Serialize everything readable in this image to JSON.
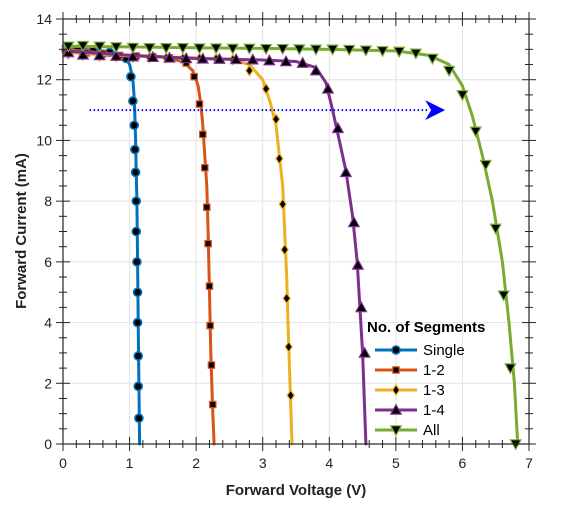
{
  "chart_data": {
    "type": "line",
    "title": "",
    "xlabel": "Forward Voltage (V)",
    "ylabel": "Forward Current (mA)",
    "xlim": [
      0,
      7
    ],
    "ylim": [
      0,
      14
    ],
    "x_ticks": [
      "0",
      "1",
      "2",
      "3",
      "4",
      "5",
      "6",
      "7"
    ],
    "y_ticks": [
      "0",
      "2",
      "4",
      "6",
      "8",
      "10",
      "12",
      "14"
    ],
    "grid": true,
    "legend": {
      "title": "No. of Segments",
      "placement": "bottom-right"
    },
    "annotations": [
      {
        "type": "arrow",
        "style": "dotted",
        "color": "#0000ff",
        "from": [
          0.4,
          11.0
        ],
        "to": [
          5.5,
          11.0
        ]
      }
    ],
    "series": [
      {
        "name": "Single",
        "color": "#0072bd",
        "marker": "circle",
        "points": [
          [
            0.0,
            13.1
          ],
          [
            0.3,
            13.0
          ],
          [
            0.6,
            12.95
          ],
          [
            0.85,
            12.85
          ],
          [
            0.95,
            12.7
          ],
          [
            1.0,
            12.5
          ],
          [
            1.03,
            12.2
          ],
          [
            1.05,
            12.0
          ],
          [
            1.07,
            11.4
          ],
          [
            1.08,
            10.8
          ],
          [
            1.09,
            10.0
          ],
          [
            1.1,
            9.0
          ],
          [
            1.11,
            8.0
          ],
          [
            1.12,
            6.0
          ],
          [
            1.13,
            4.0
          ],
          [
            1.14,
            2.0
          ],
          [
            1.15,
            0.0
          ]
        ],
        "marker_points": [
          [
            0.22,
            13.0
          ],
          [
            0.45,
            12.95
          ],
          [
            0.7,
            12.9
          ],
          [
            0.95,
            12.7
          ],
          [
            1.02,
            12.1
          ],
          [
            1.05,
            11.3
          ],
          [
            1.07,
            10.5
          ],
          [
            1.08,
            9.7
          ],
          [
            1.09,
            8.95
          ],
          [
            1.1,
            8.0
          ],
          [
            1.1,
            7.0
          ],
          [
            1.11,
            6.0
          ],
          [
            1.12,
            5.0
          ],
          [
            1.12,
            4.0
          ],
          [
            1.13,
            2.9
          ],
          [
            1.13,
            1.9
          ],
          [
            1.14,
            0.85
          ]
        ]
      },
      {
        "name": "1-2",
        "color": "#d95319",
        "marker": "square",
        "points": [
          [
            0.0,
            13.0
          ],
          [
            0.5,
            12.9
          ],
          [
            1.0,
            12.8
          ],
          [
            1.5,
            12.75
          ],
          [
            1.8,
            12.6
          ],
          [
            1.95,
            12.3
          ],
          [
            2.03,
            11.8
          ],
          [
            2.07,
            11.2
          ],
          [
            2.1,
            10.5
          ],
          [
            2.13,
            9.5
          ],
          [
            2.16,
            8.5
          ],
          [
            2.18,
            7.0
          ],
          [
            2.2,
            5.0
          ],
          [
            2.22,
            3.0
          ],
          [
            2.25,
            1.0
          ],
          [
            2.27,
            0.0
          ]
        ],
        "marker_points": [
          [
            0.08,
            12.95
          ],
          [
            0.35,
            12.88
          ],
          [
            0.6,
            12.85
          ],
          [
            0.85,
            12.8
          ],
          [
            1.1,
            12.78
          ],
          [
            1.35,
            12.76
          ],
          [
            1.6,
            12.72
          ],
          [
            1.85,
            12.55
          ],
          [
            1.97,
            12.1
          ],
          [
            2.05,
            11.2
          ],
          [
            2.1,
            10.2
          ],
          [
            2.13,
            9.1
          ],
          [
            2.16,
            7.8
          ],
          [
            2.18,
            6.6
          ],
          [
            2.2,
            5.2
          ],
          [
            2.21,
            3.9
          ],
          [
            2.23,
            2.6
          ],
          [
            2.25,
            1.3
          ]
        ]
      },
      {
        "name": "1-3",
        "color": "#edb120",
        "marker": "diamond",
        "points": [
          [
            0.0,
            12.9
          ],
          [
            1.0,
            12.78
          ],
          [
            2.0,
            12.72
          ],
          [
            2.5,
            12.68
          ],
          [
            2.8,
            12.5
          ],
          [
            3.0,
            12.0
          ],
          [
            3.12,
            11.2
          ],
          [
            3.2,
            10.5
          ],
          [
            3.25,
            9.5
          ],
          [
            3.3,
            8.5
          ],
          [
            3.33,
            7.0
          ],
          [
            3.36,
            5.5
          ],
          [
            3.38,
            4.0
          ],
          [
            3.41,
            2.0
          ],
          [
            3.44,
            0.0
          ]
        ],
        "marker_points": [
          [
            0.08,
            12.85
          ],
          [
            0.3,
            12.8
          ],
          [
            0.55,
            12.78
          ],
          [
            0.8,
            12.76
          ],
          [
            1.05,
            12.74
          ],
          [
            1.3,
            12.73
          ],
          [
            1.55,
            12.72
          ],
          [
            1.8,
            12.7
          ],
          [
            2.05,
            12.7
          ],
          [
            2.3,
            12.69
          ],
          [
            2.55,
            12.66
          ],
          [
            2.8,
            12.3
          ],
          [
            3.05,
            11.7
          ],
          [
            3.2,
            10.7
          ],
          [
            3.25,
            9.4
          ],
          [
            3.3,
            7.9
          ],
          [
            3.33,
            6.4
          ],
          [
            3.36,
            4.8
          ],
          [
            3.39,
            3.2
          ],
          [
            3.42,
            1.6
          ]
        ]
      },
      {
        "name": "1-4",
        "color": "#7e2f8e",
        "marker": "triangle-up",
        "points": [
          [
            0.0,
            12.95
          ],
          [
            1.0,
            12.8
          ],
          [
            2.0,
            12.7
          ],
          [
            3.0,
            12.65
          ],
          [
            3.5,
            12.6
          ],
          [
            3.8,
            12.4
          ],
          [
            3.95,
            11.9
          ],
          [
            4.05,
            11.0
          ],
          [
            4.15,
            10.0
          ],
          [
            4.25,
            9.0
          ],
          [
            4.35,
            7.5
          ],
          [
            4.42,
            6.0
          ],
          [
            4.46,
            4.5
          ],
          [
            4.5,
            3.0
          ],
          [
            4.55,
            0.0
          ]
        ],
        "marker_points": [
          [
            0.08,
            12.9
          ],
          [
            0.3,
            12.82
          ],
          [
            0.55,
            12.8
          ],
          [
            0.8,
            12.78
          ],
          [
            1.05,
            12.76
          ],
          [
            1.35,
            12.74
          ],
          [
            1.6,
            12.72
          ],
          [
            1.85,
            12.7
          ],
          [
            2.1,
            12.69
          ],
          [
            2.35,
            12.68
          ],
          [
            2.6,
            12.67
          ],
          [
            2.85,
            12.66
          ],
          [
            3.1,
            12.63
          ],
          [
            3.35,
            12.6
          ],
          [
            3.6,
            12.55
          ],
          [
            3.8,
            12.3
          ],
          [
            3.98,
            11.7
          ],
          [
            4.13,
            10.4
          ],
          [
            4.25,
            8.95
          ],
          [
            4.37,
            7.3
          ],
          [
            4.43,
            5.9
          ],
          [
            4.48,
            4.5
          ],
          [
            4.53,
            3.0
          ]
        ]
      },
      {
        "name": "All",
        "color": "#77ac30",
        "marker": "triangle-down",
        "points": [
          [
            0.0,
            13.1
          ],
          [
            1.0,
            13.08
          ],
          [
            2.0,
            13.05
          ],
          [
            3.0,
            13.03
          ],
          [
            4.0,
            13.0
          ],
          [
            5.0,
            12.95
          ],
          [
            5.5,
            12.8
          ],
          [
            5.8,
            12.5
          ],
          [
            6.0,
            11.8
          ],
          [
            6.15,
            10.8
          ],
          [
            6.3,
            9.5
          ],
          [
            6.45,
            8.0
          ],
          [
            6.6,
            6.0
          ],
          [
            6.7,
            4.0
          ],
          [
            6.78,
            2.0
          ],
          [
            6.83,
            0.0
          ]
        ],
        "marker_points": [
          [
            0.08,
            13.1
          ],
          [
            0.3,
            13.12
          ],
          [
            0.55,
            13.1
          ],
          [
            0.8,
            13.08
          ],
          [
            1.05,
            13.06
          ],
          [
            1.3,
            13.05
          ],
          [
            1.55,
            13.05
          ],
          [
            1.8,
            13.05
          ],
          [
            2.05,
            13.04
          ],
          [
            2.3,
            13.04
          ],
          [
            2.55,
            13.03
          ],
          [
            2.8,
            13.03
          ],
          [
            3.05,
            13.02
          ],
          [
            3.3,
            13.02
          ],
          [
            3.55,
            13.01
          ],
          [
            3.8,
            13.0
          ],
          [
            4.05,
            13.0
          ],
          [
            4.3,
            12.99
          ],
          [
            4.55,
            12.97
          ],
          [
            4.8,
            12.95
          ],
          [
            5.05,
            12.93
          ],
          [
            5.3,
            12.87
          ],
          [
            5.55,
            12.7
          ],
          [
            5.8,
            12.3
          ],
          [
            6.0,
            11.5
          ],
          [
            6.2,
            10.3
          ],
          [
            6.35,
            9.2
          ],
          [
            6.5,
            7.1
          ],
          [
            6.62,
            4.9
          ],
          [
            6.72,
            2.5
          ],
          [
            6.8,
            0.0
          ]
        ]
      }
    ]
  }
}
